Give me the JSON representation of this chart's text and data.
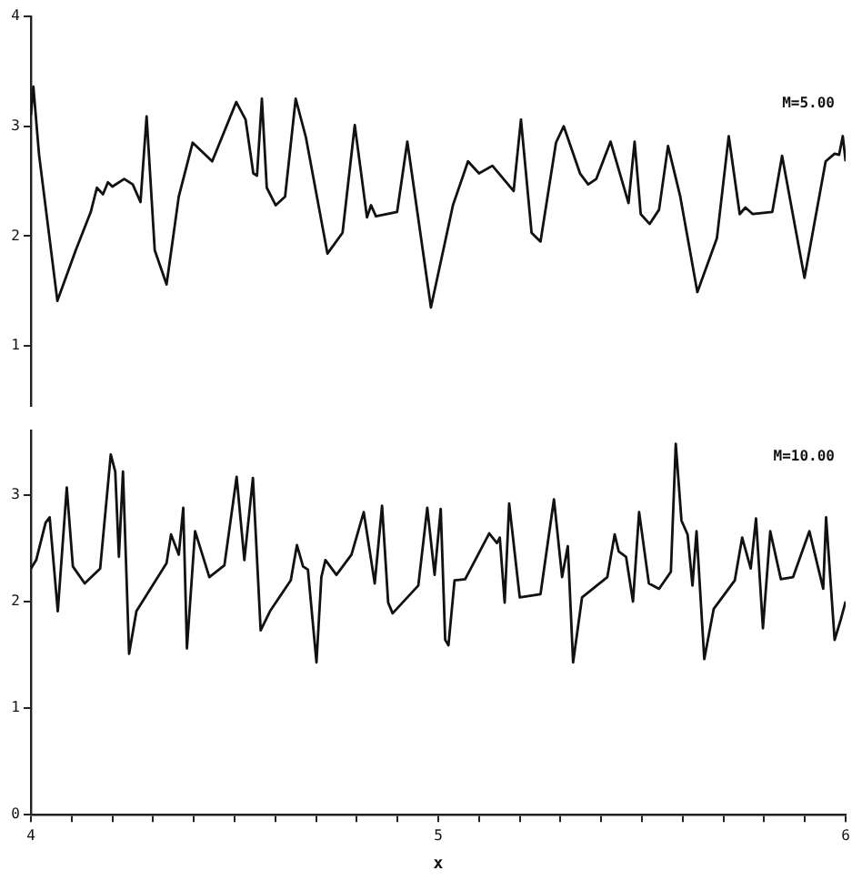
{
  "chart_data": [
    {
      "type": "line",
      "xlim": [
        4,
        6
      ],
      "ylim": [
        0.45,
        4
      ],
      "yticks": [
        1,
        2,
        3,
        4
      ],
      "tick_labels": "y",
      "grid": false,
      "annotations": [
        "M=5.00"
      ],
      "series": [
        {
          "color": "#111111",
          "x": [
            4.0,
            4.006,
            4.02,
            4.065,
            4.11,
            4.147,
            4.162,
            4.177,
            4.189,
            4.2,
            4.229,
            4.25,
            4.269,
            4.284,
            4.304,
            4.333,
            4.363,
            4.397,
            4.445,
            4.504,
            4.527,
            4.546,
            4.555,
            4.567,
            4.579,
            4.601,
            4.624,
            4.65,
            4.675,
            4.728,
            4.765,
            4.795,
            4.825,
            4.835,
            4.847,
            4.899,
            4.924,
            4.982,
            5.036,
            5.073,
            5.1,
            5.133,
            5.185,
            5.203,
            5.229,
            5.251,
            5.289,
            5.308,
            5.348,
            5.368,
            5.388,
            5.423,
            5.467,
            5.482,
            5.497,
            5.519,
            5.542,
            5.564,
            5.594,
            5.636,
            5.684,
            5.713,
            5.74,
            5.754,
            5.772,
            5.82,
            5.844,
            5.899,
            5.951,
            5.973,
            5.984,
            5.993,
            6.0
          ],
          "values": [
            3.1,
            3.36,
            2.74,
            1.41,
            1.87,
            2.22,
            2.44,
            2.38,
            2.49,
            2.45,
            2.52,
            2.47,
            2.31,
            3.09,
            1.87,
            1.56,
            2.36,
            2.85,
            2.68,
            3.22,
            3.06,
            2.57,
            2.55,
            3.25,
            2.44,
            2.28,
            2.36,
            3.25,
            2.9,
            1.84,
            2.03,
            3.01,
            2.17,
            2.28,
            2.18,
            2.22,
            2.86,
            1.35,
            2.28,
            2.68,
            2.57,
            2.64,
            2.41,
            3.06,
            2.03,
            1.95,
            2.85,
            3.0,
            2.57,
            2.47,
            2.52,
            2.86,
            2.3,
            2.86,
            2.2,
            2.11,
            2.24,
            2.82,
            2.36,
            1.49,
            1.98,
            2.91,
            2.2,
            2.26,
            2.2,
            2.22,
            2.73,
            1.62,
            2.68,
            2.75,
            2.74,
            2.91,
            2.68
          ]
        }
      ]
    },
    {
      "type": "line",
      "xlim": [
        4,
        6
      ],
      "ylim": [
        0,
        3.6
      ],
      "yticks": [
        0,
        1,
        2,
        3
      ],
      "xticks": [
        4,
        {
          "value": 4.1,
          "label": null
        },
        {
          "value": 4.2,
          "label": null
        },
        {
          "value": 4.3,
          "label": null
        },
        {
          "value": 4.4,
          "label": null
        },
        {
          "value": 4.5,
          "label": null
        },
        {
          "value": 4.6,
          "label": null
        },
        {
          "value": 4.7,
          "label": null
        },
        {
          "value": 4.8,
          "label": null
        },
        {
          "value": 4.9,
          "label": null
        },
        5,
        {
          "value": 5.1,
          "label": null
        },
        {
          "value": 5.2,
          "label": null
        },
        {
          "value": 5.3,
          "label": null
        },
        {
          "value": 5.4,
          "label": null
        },
        {
          "value": 5.5,
          "label": null
        },
        {
          "value": 5.6,
          "label": null
        },
        {
          "value": 5.7,
          "label": null
        },
        {
          "value": 5.8,
          "label": null
        },
        {
          "value": 5.9,
          "label": null
        },
        6
      ],
      "xlabel": "x",
      "grid": false,
      "annotations": [
        "M=10.00"
      ],
      "series": [
        {
          "color": "#111111",
          "x": [
            4.0,
            4.013,
            4.036,
            4.046,
            4.066,
            4.088,
            4.103,
            4.132,
            4.17,
            4.196,
            4.207,
            4.216,
            4.226,
            4.241,
            4.259,
            4.333,
            4.344,
            4.363,
            4.374,
            4.383,
            4.403,
            4.438,
            4.475,
            4.505,
            4.524,
            4.545,
            4.564,
            4.587,
            4.638,
            4.653,
            4.668,
            4.68,
            4.701,
            4.713,
            4.723,
            4.75,
            4.787,
            4.817,
            4.844,
            4.862,
            4.877,
            4.888,
            4.951,
            4.973,
            4.991,
            5.006,
            5.017,
            5.025,
            5.04,
            5.066,
            5.125,
            5.144,
            5.151,
            5.163,
            5.174,
            5.2,
            5.251,
            5.284,
            5.304,
            5.318,
            5.331,
            5.353,
            5.415,
            5.433,
            5.443,
            5.461,
            5.478,
            5.493,
            5.517,
            5.542,
            5.571,
            5.583,
            5.597,
            5.612,
            5.624,
            5.634,
            5.653,
            5.676,
            5.728,
            5.746,
            5.767,
            5.78,
            5.797,
            5.815,
            5.841,
            5.871,
            5.911,
            5.945,
            5.952,
            5.973,
            5.988,
            6.0
          ],
          "values": [
            2.31,
            2.39,
            2.74,
            2.79,
            1.91,
            3.07,
            2.33,
            2.17,
            2.31,
            3.38,
            3.22,
            2.42,
            3.22,
            1.51,
            1.91,
            2.36,
            2.63,
            2.44,
            2.88,
            1.56,
            2.66,
            2.23,
            2.34,
            3.17,
            2.39,
            3.16,
            1.73,
            1.91,
            2.2,
            2.53,
            2.33,
            2.3,
            1.43,
            2.23,
            2.39,
            2.25,
            2.44,
            2.84,
            2.17,
            2.9,
            1.99,
            1.89,
            2.15,
            2.88,
            2.25,
            2.87,
            1.64,
            1.59,
            2.2,
            2.21,
            2.64,
            2.55,
            2.6,
            1.99,
            2.92,
            2.04,
            2.07,
            2.96,
            2.23,
            2.52,
            1.43,
            2.04,
            2.23,
            2.63,
            2.47,
            2.42,
            2.0,
            2.84,
            2.17,
            2.12,
            2.28,
            3.48,
            2.76,
            2.63,
            2.15,
            2.66,
            1.46,
            1.93,
            2.2,
            2.6,
            2.31,
            2.78,
            1.75,
            2.66,
            2.21,
            2.23,
            2.66,
            2.12,
            2.79,
            1.64,
            1.83,
            2.0
          ]
        }
      ]
    }
  ]
}
